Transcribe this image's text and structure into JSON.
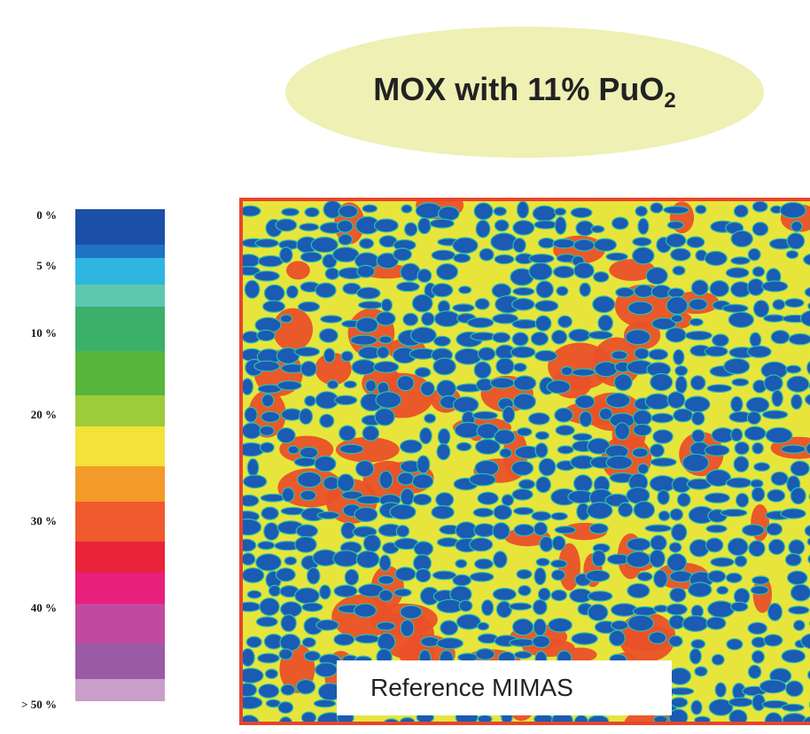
{
  "title": {
    "main": "MOX with 11% PuO",
    "subscript": "2"
  },
  "scale": {
    "labels": [
      "0 %",
      "5 %",
      "10 %",
      "20 %",
      "30 %",
      "40 %",
      "> 50 %"
    ],
    "label_values": [
      0,
      5,
      10,
      20,
      30,
      40,
      50
    ],
    "colors": [
      "#1b4fa8",
      "#1f72c4",
      "#2fb6e0",
      "#5fc6b0",
      "#3bb06b",
      "#58b63c",
      "#9ccc3a",
      "#f2e23a",
      "#f39a2a",
      "#ef5a2e",
      "#e8233a",
      "#e8207d",
      "#c24a9e",
      "#9a5aa6",
      "#c99ec9",
      "#f1dcec"
    ]
  },
  "map": {
    "description_colors": {
      "matrix": "#e7e53c",
      "low_pu": "#1b5bb3",
      "high_pu": "#ea5128",
      "edge": "#2fbfa9"
    }
  },
  "caption": "Reference MIMAS"
}
